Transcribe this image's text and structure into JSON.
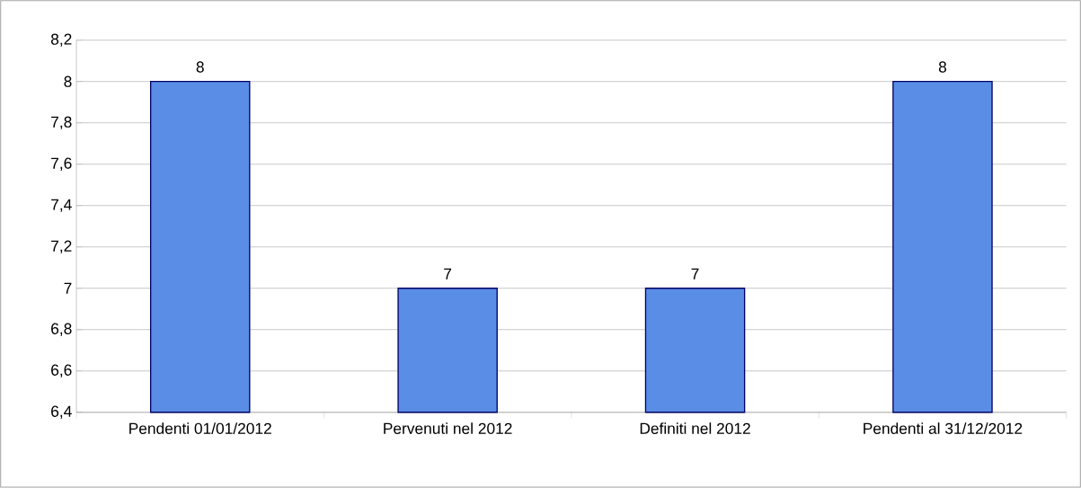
{
  "chart_data": {
    "type": "bar",
    "categories": [
      "Pendenti 01/01/2012",
      "Pervenuti nel 2012",
      "Definiti nel 2012",
      "Pendenti al 31/12/2012"
    ],
    "values": [
      8,
      7,
      7,
      8
    ],
    "color": "#5a8ee6",
    "data_labels": true,
    "grid": "y",
    "ylim": [
      6.4,
      8.2
    ],
    "yticks": [
      {
        "value": 6.4,
        "label": "6,4"
      },
      {
        "value": 6.6,
        "label": "6,6"
      },
      {
        "value": 6.8,
        "label": "6,8"
      },
      {
        "value": 7,
        "label": "7"
      },
      {
        "value": 7.2,
        "label": "7,2"
      },
      {
        "value": 7.4,
        "label": "7,4"
      },
      {
        "value": 7.6,
        "label": "7,6"
      },
      {
        "value": 7.8,
        "label": "7,8"
      },
      {
        "value": 8,
        "label": "8"
      },
      {
        "value": 8.2,
        "label": "8,2"
      }
    ]
  }
}
